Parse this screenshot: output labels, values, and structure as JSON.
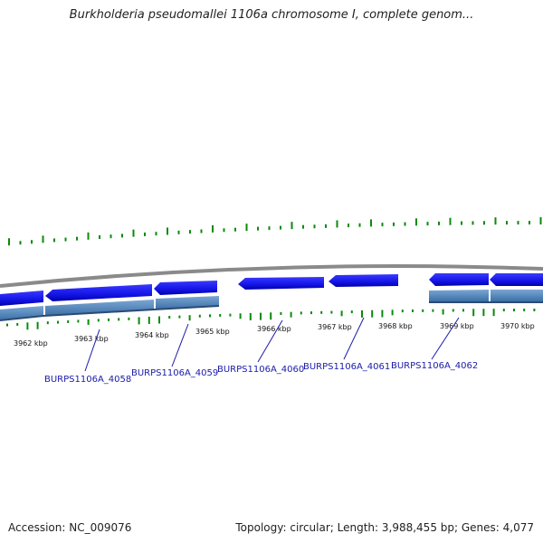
{
  "title": "Burkholderia pseudomallei 1106a chromosome I, complete genom...",
  "footer": {
    "accession": "Accession: NC_009076",
    "summary": "Topology: circular; Length: 3,988,455 bp; Genes: 4,077"
  },
  "tick_labels": [
    "3962 kbp",
    "3963 kbp",
    "3964 kbp",
    "3965 kbp",
    "3966 kbp",
    "3967 kbp",
    "3968 kbp",
    "3969 kbp",
    "3970 kbp"
  ],
  "gene_labels": [
    "BURPS1106A_4058",
    "BURPS1106A_4059",
    "BURPS1106A_4060",
    "BURPS1106A_4061",
    "BURPS1106A_4062"
  ],
  "colors": {
    "gene_fill": "#1414e6",
    "gene_dark": "#0000a0",
    "track": "#4a7fb5",
    "backbone": "#888888",
    "gc_skew": "#0a8a0a",
    "label": "#1a1aa8"
  }
}
